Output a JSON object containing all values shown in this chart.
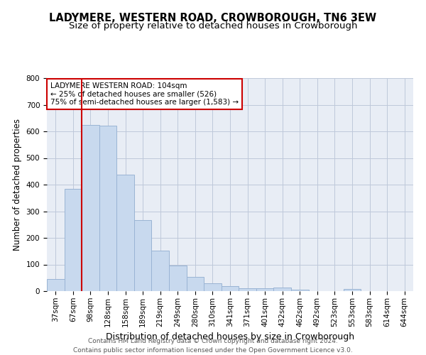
{
  "title": "LADYMERE, WESTERN ROAD, CROWBOROUGH, TN6 3EW",
  "subtitle": "Size of property relative to detached houses in Crowborough",
  "xlabel": "Distribution of detached houses by size in Crowborough",
  "ylabel": "Number of detached properties",
  "bar_color": "#c8d9ee",
  "bar_edge_color": "#9ab4d4",
  "categories": [
    "37sqm",
    "67sqm",
    "98sqm",
    "128sqm",
    "158sqm",
    "189sqm",
    "219sqm",
    "249sqm",
    "280sqm",
    "310sqm",
    "341sqm",
    "371sqm",
    "401sqm",
    "432sqm",
    "462sqm",
    "492sqm",
    "523sqm",
    "553sqm",
    "583sqm",
    "614sqm",
    "644sqm"
  ],
  "values": [
    45,
    383,
    623,
    622,
    437,
    268,
    152,
    96,
    53,
    30,
    18,
    10,
    10,
    13,
    5,
    0,
    0,
    8,
    0,
    0,
    0
  ],
  "ylim": [
    0,
    800
  ],
  "yticks": [
    0,
    100,
    200,
    300,
    400,
    500,
    600,
    700,
    800
  ],
  "vline_x": 1.5,
  "vline_color": "#cc0000",
  "annotation_text": "LADYMERE WESTERN ROAD: 104sqm\n← 25% of detached houses are smaller (526)\n75% of semi-detached houses are larger (1,583) →",
  "annotation_box_color": "#ffffff",
  "annotation_box_edge_color": "#cc0000",
  "grid_color": "#bec8da",
  "background_color": "#e8edf5",
  "footer_text": "Contains HM Land Registry data © Crown copyright and database right 2024.\nContains public sector information licensed under the Open Government Licence v3.0.",
  "title_fontsize": 10.5,
  "subtitle_fontsize": 9.5,
  "xlabel_fontsize": 9,
  "ylabel_fontsize": 8.5,
  "tick_fontsize": 7.5,
  "annotation_fontsize": 7.5,
  "footer_fontsize": 6.5
}
